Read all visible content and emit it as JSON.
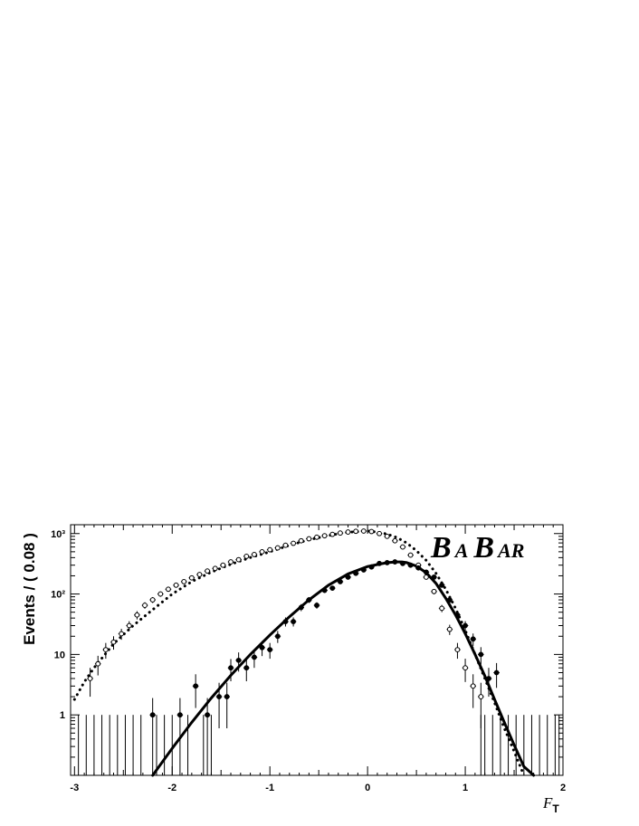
{
  "chart_data": {
    "type": "scatter",
    "title": "",
    "logo": {
      "first": "B",
      "middle": "A",
      "second": "B",
      "last": "AR"
    },
    "xlabel": {
      "main": "F",
      "sub": "T"
    },
    "ylabel": "Events / ( 0.08 )",
    "xlim": [
      -3.04,
      2.0
    ],
    "ylim": [
      0.1,
      1400
    ],
    "yscale": "log",
    "x_ticks": [
      -3,
      -2,
      -1,
      0,
      1,
      2
    ],
    "x_tick_labels": [
      "-3",
      "-2",
      "-1",
      "0",
      "1",
      "2"
    ],
    "y_ticks": [
      1,
      10,
      100,
      1000
    ],
    "y_tick_labels": [
      "1",
      "10",
      "10²",
      "10³"
    ],
    "grid": false,
    "series": [
      {
        "name": "",
        "marker": "open-circle",
        "x": [
          -2.84,
          -2.76,
          -2.68,
          -2.6,
          -2.52,
          -2.44,
          -2.36,
          -2.28,
          -2.2,
          -2.12,
          -2.04,
          -1.96,
          -1.88,
          -1.8,
          -1.72,
          -1.64,
          -1.56,
          -1.48,
          -1.4,
          -1.32,
          -1.24,
          -1.16,
          -1.08,
          -1.0,
          -0.92,
          -0.84,
          -0.76,
          -0.68,
          -0.6,
          -0.52,
          -0.44,
          -0.36,
          -0.28,
          -0.2,
          -0.12,
          -0.04,
          0.04,
          0.12,
          0.2,
          0.28,
          0.36,
          0.44,
          0.52,
          0.6,
          0.68,
          0.76,
          0.84,
          0.92,
          1.0,
          1.08,
          1.16
        ],
        "y": [
          4,
          7,
          12,
          16,
          22,
          30,
          45,
          65,
          80,
          100,
          120,
          140,
          160,
          185,
          210,
          240,
          265,
          300,
          340,
          370,
          420,
          450,
          500,
          540,
          580,
          640,
          690,
          760,
          820,
          870,
          920,
          970,
          1020,
          1060,
          1090,
          1100,
          1080,
          1000,
          900,
          760,
          600,
          440,
          300,
          190,
          110,
          58,
          26,
          12,
          6,
          3,
          2
        ],
        "err": [
          2,
          2.5,
          3.5,
          4,
          4.5,
          5.5,
          7,
          8,
          9,
          10,
          11,
          12,
          13,
          14,
          15,
          15,
          16,
          17,
          18,
          19,
          20,
          21,
          22,
          23,
          24,
          25,
          26,
          28,
          29,
          30,
          30,
          31,
          32,
          33,
          33,
          33,
          33,
          32,
          30,
          28,
          25,
          21,
          17,
          14,
          11,
          8,
          5,
          3.5,
          2.5,
          1.7,
          1.4
        ]
      },
      {
        "name": "",
        "marker": "filled-circle",
        "x": [
          -2.2,
          -1.92,
          -1.76,
          -1.64,
          -1.52,
          -1.44,
          -1.4,
          -1.32,
          -1.24,
          -1.16,
          -1.08,
          -1.0,
          -0.92,
          -0.84,
          -0.76,
          -0.68,
          -0.6,
          -0.52,
          -0.44,
          -0.36,
          -0.28,
          -0.2,
          -0.12,
          -0.04,
          0.04,
          0.12,
          0.2,
          0.28,
          0.36,
          0.44,
          0.52,
          0.6,
          0.68,
          0.76,
          0.84,
          0.92,
          1.0,
          1.08,
          1.16,
          1.24,
          1.32
        ],
        "y": [
          1,
          1,
          3,
          1,
          2,
          2,
          6,
          8,
          6,
          9,
          13,
          12,
          20,
          35,
          35,
          60,
          80,
          65,
          115,
          125,
          160,
          190,
          220,
          250,
          280,
          320,
          330,
          340,
          320,
          300,
          270,
          230,
          190,
          140,
          80,
          45,
          30,
          18,
          10,
          4,
          5
        ],
        "err": [
          0.9,
          0.9,
          1.7,
          0.9,
          1.4,
          1.4,
          2.4,
          2.8,
          2.4,
          3,
          3.6,
          3.5,
          4.5,
          6,
          6,
          8,
          9,
          8,
          11,
          11,
          13,
          14,
          15,
          16,
          17,
          18,
          18,
          18,
          18,
          17,
          16,
          15,
          14,
          12,
          9,
          7,
          5.5,
          4.2,
          3.2,
          2,
          2.2
        ]
      }
    ],
    "empty_bin_bars": {
      "upper": 1.0,
      "x_left": [
        -2.96,
        -2.88,
        -2.8,
        -2.72,
        -2.64,
        -2.56,
        -2.48,
        -2.4,
        -2.32,
        -2.16,
        -2.08,
        -2.0,
        -1.84,
        -1.68,
        -1.6
      ],
      "x_right": [
        1.16,
        1.2,
        1.28,
        1.36,
        1.44,
        1.52,
        1.6,
        1.68,
        1.76,
        1.84,
        1.92,
        1.96
      ]
    },
    "curves": [
      {
        "name": "",
        "style": "dotted",
        "x": [
          -3.0,
          -2.9,
          -2.8,
          -2.6,
          -2.4,
          -2.2,
          -2.0,
          -1.8,
          -1.6,
          -1.4,
          -1.2,
          -1.0,
          -0.8,
          -0.6,
          -0.4,
          -0.2,
          0.0,
          0.1,
          0.2,
          0.3,
          0.4,
          0.5,
          0.6,
          0.7,
          0.8,
          0.9,
          1.0,
          1.1,
          1.2,
          1.3,
          1.4,
          1.5,
          1.6
        ],
        "y": [
          1.8,
          3.5,
          6,
          15,
          30,
          55,
          100,
          160,
          230,
          310,
          400,
          500,
          640,
          790,
          930,
          1050,
          1100,
          1060,
          980,
          860,
          700,
          520,
          360,
          220,
          120,
          58,
          25,
          10,
          4,
          1.6,
          0.6,
          0.25,
          0.1
        ]
      },
      {
        "name": "",
        "style": "solid",
        "x": [
          -2.2,
          -2.0,
          -1.8,
          -1.6,
          -1.4,
          -1.2,
          -1.0,
          -0.8,
          -0.6,
          -0.4,
          -0.2,
          0.0,
          0.2,
          0.3,
          0.35,
          0.4,
          0.5,
          0.6,
          0.7,
          0.8,
          0.9,
          1.0,
          1.1,
          1.2,
          1.3,
          1.4,
          1.5,
          1.6,
          1.7
        ],
        "y": [
          0.1,
          0.28,
          0.75,
          1.9,
          4.5,
          10,
          21,
          42,
          80,
          140,
          215,
          285,
          330,
          340,
          340,
          330,
          290,
          225,
          150,
          85,
          45,
          22,
          10,
          4.4,
          1.8,
          0.75,
          0.32,
          0.14,
          0.08
        ]
      }
    ]
  }
}
